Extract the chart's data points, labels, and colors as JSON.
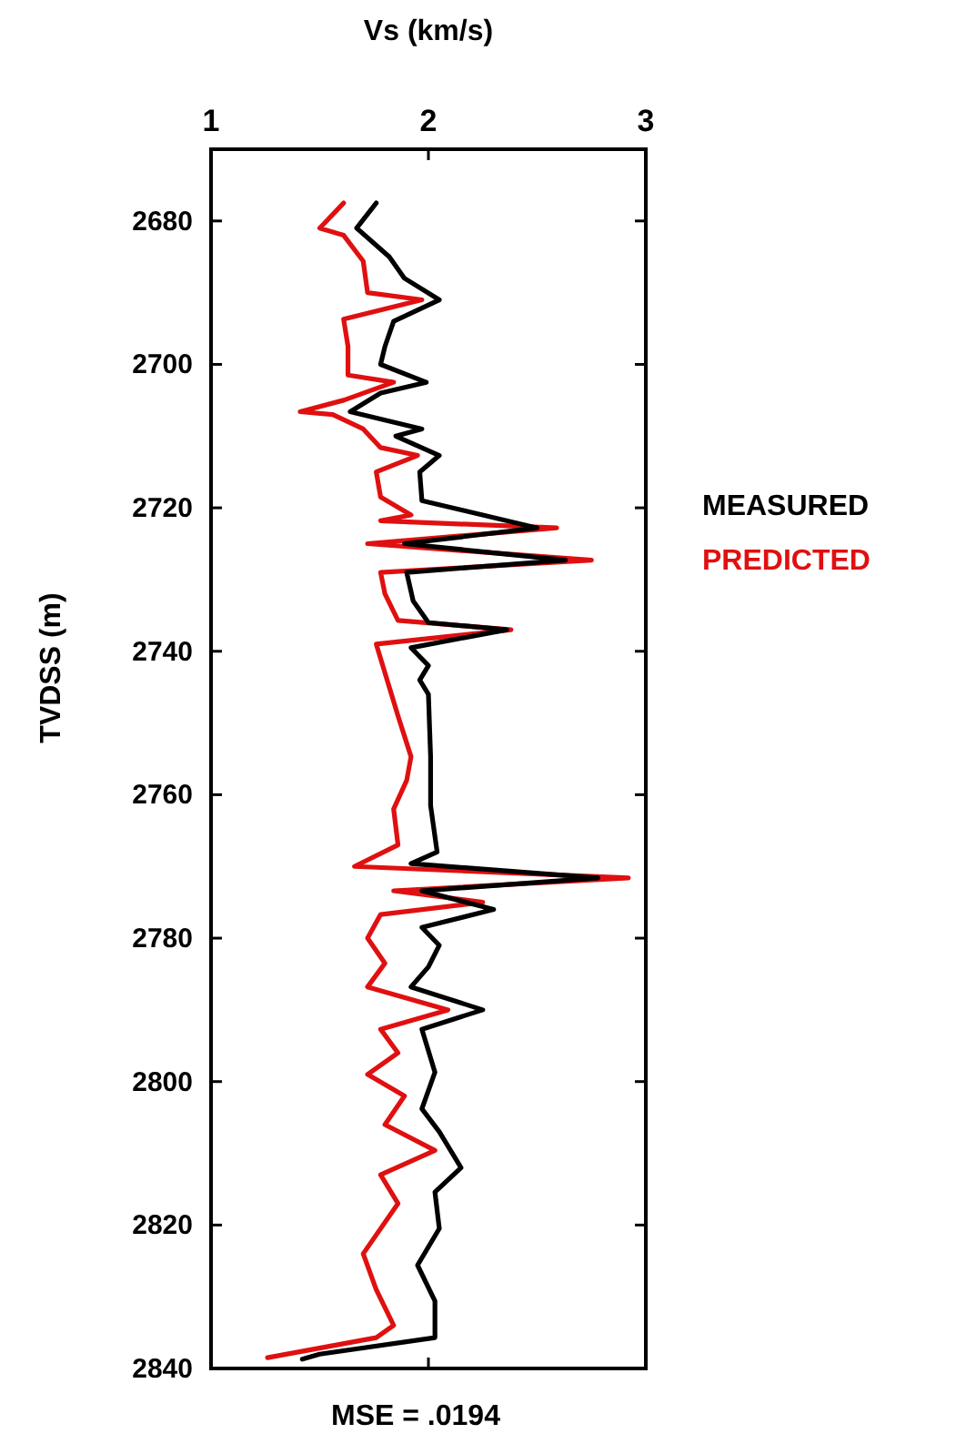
{
  "chart_data": {
    "type": "line",
    "xlabel": "Vs (km/s)",
    "ylabel": "TVDSS (m)",
    "xlim": [
      1,
      3
    ],
    "xticks": [
      1,
      2,
      3
    ],
    "ylim": [
      2840,
      2670
    ],
    "yticks": [
      2680,
      2700,
      2720,
      2740,
      2760,
      2780,
      2800,
      2820,
      2840
    ],
    "grid": false,
    "legend": "right",
    "annotations": [
      "MSE = .0194"
    ],
    "series": [
      {
        "name": "MEASURED",
        "color": "#000000",
        "x": [
          1.76,
          1.67,
          1.82,
          1.89,
          2.05,
          1.84,
          1.8,
          1.78,
          1.99,
          1.78,
          1.64,
          1.97,
          1.85,
          2.05,
          1.96,
          1.97,
          2.5,
          1.89,
          2.63,
          1.9,
          1.93,
          2.0,
          2.36,
          1.92,
          2.0,
          1.96,
          2.0,
          2.01,
          2.01,
          2.04,
          1.92,
          2.78,
          1.97,
          2.3,
          1.97,
          2.05,
          2.0,
          1.92,
          2.25,
          1.97,
          2.03,
          1.97,
          2.05,
          2.15,
          2.03,
          2.05,
          1.95,
          2.03,
          2.03,
          1.5,
          1.42
        ],
        "values": [
          2677.5,
          2681,
          2685,
          2688,
          2691,
          2694,
          2697.5,
          2700,
          2702.5,
          2704,
          2706.6,
          2709,
          2710,
          2712.7,
          2715,
          2719,
          2722.8,
          2725,
          2727.3,
          2729,
          2733,
          2736,
          2737,
          2739.5,
          2742,
          2744,
          2746,
          2754.7,
          2761.5,
          2768,
          2769.6,
          2771.6,
          2773.4,
          2776,
          2778.5,
          2781,
          2784,
          2786.8,
          2790,
          2792.7,
          2798.7,
          2803.8,
          2807,
          2812,
          2815.4,
          2820.5,
          2825.6,
          2830.6,
          2835.7,
          2838,
          2838.7
        ]
      },
      {
        "name": "PREDICTED",
        "color": "#e01010",
        "x": [
          1.61,
          1.5,
          1.61,
          1.7,
          1.72,
          1.97,
          1.61,
          1.63,
          1.63,
          1.84,
          1.61,
          1.41,
          1.56,
          1.7,
          1.78,
          1.95,
          1.76,
          1.78,
          1.92,
          1.78,
          2.59,
          1.72,
          2.75,
          1.78,
          1.8,
          1.86,
          2.38,
          1.76,
          1.8,
          1.86,
          1.92,
          1.9,
          1.84,
          1.86,
          1.66,
          2.92,
          1.84,
          2.25,
          1.78,
          1.72,
          1.8,
          1.72,
          2.09,
          1.78,
          1.86,
          1.72,
          1.89,
          1.8,
          2.03,
          1.78,
          1.86,
          1.7,
          1.76,
          1.84,
          1.76,
          1.26
        ],
        "values": [
          2677.5,
          2681,
          2682,
          2685.6,
          2690,
          2691,
          2693.7,
          2697.5,
          2701.5,
          2702.5,
          2705,
          2706.6,
          2707,
          2709,
          2711.6,
          2712.7,
          2715,
          2718.5,
          2721,
          2721.8,
          2722.8,
          2725,
          2727.3,
          2729,
          2732,
          2735.7,
          2737,
          2739,
          2743,
          2749,
          2754.7,
          2758,
          2762,
          2767,
          2770,
          2771.6,
          2773.4,
          2775,
          2776.7,
          2780,
          2783.5,
          2786.8,
          2790,
          2792.7,
          2796,
          2799,
          2802,
          2806,
          2809.6,
          2813,
          2817,
          2824,
          2829,
          2834,
          2835.7,
          2838.5
        ]
      }
    ]
  }
}
